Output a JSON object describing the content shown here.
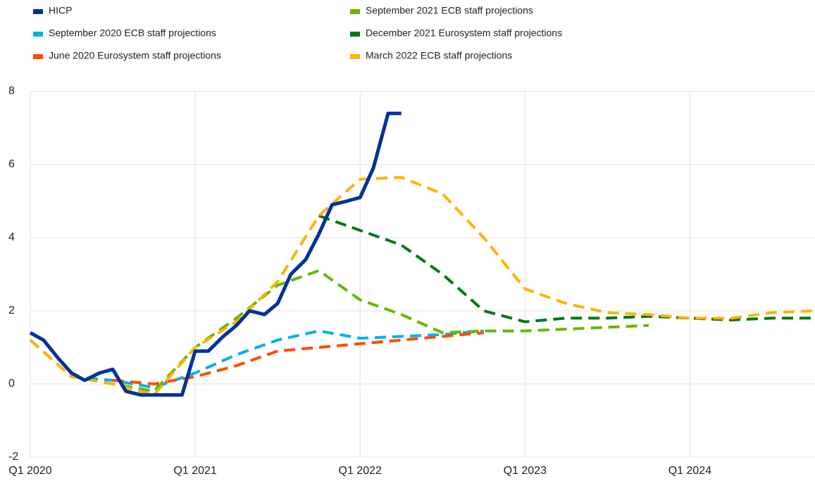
{
  "chart_data": {
    "type": "line",
    "series": [
      {
        "name": "HICP",
        "color": "#003299",
        "dashed": false,
        "x": [
          2020.0,
          2020.08,
          2020.17,
          2020.25,
          2020.33,
          2020.42,
          2020.5,
          2020.58,
          2020.67,
          2020.75,
          2020.83,
          2020.92,
          2021.0,
          2021.08,
          2021.17,
          2021.25,
          2021.33,
          2021.42,
          2021.5,
          2021.58,
          2021.67,
          2021.75,
          2021.83,
          2021.92,
          2022.0,
          2022.08,
          2022.17,
          2022.25
        ],
        "values": [
          1.4,
          1.2,
          0.7,
          0.3,
          0.1,
          0.3,
          0.4,
          -0.2,
          -0.3,
          -0.3,
          -0.3,
          -0.3,
          0.9,
          0.9,
          1.3,
          1.6,
          2.0,
          1.9,
          2.2,
          3.0,
          3.4,
          4.1,
          4.9,
          5.0,
          5.1,
          5.9,
          7.4,
          7.4
        ]
      },
      {
        "name": "September 2020 ECB staff projections",
        "color": "#00b1ea",
        "dashed": true,
        "x": [
          2020.0,
          2020.25,
          2020.5,
          2020.75,
          2021.0,
          2021.25,
          2021.5,
          2021.75,
          2022.0,
          2022.25,
          2022.5,
          2022.75
        ],
        "values": [
          1.2,
          0.2,
          0.1,
          -0.1,
          0.3,
          0.8,
          1.2,
          1.45,
          1.25,
          1.3,
          1.35,
          1.45
        ]
      },
      {
        "name": "June 2020 Eurosystem staff projections",
        "color": "#ff4b00",
        "dashed": true,
        "x": [
          2020.5,
          2020.75,
          2021.0,
          2021.25,
          2021.5,
          2021.75,
          2022.0,
          2022.25,
          2022.5,
          2022.75
        ],
        "values": [
          0.1,
          0.0,
          0.2,
          0.5,
          0.9,
          1.0,
          1.1,
          1.2,
          1.3,
          1.4
        ]
      },
      {
        "name": "September 2021 ECB staff projections",
        "color": "#65b800",
        "dashed": true,
        "x": [
          2020.0,
          2020.25,
          2020.5,
          2020.75,
          2021.0,
          2021.25,
          2021.5,
          2021.75,
          2022.0,
          2022.25,
          2022.5,
          2022.75,
          2023.0,
          2023.25,
          2023.5,
          2023.75
        ],
        "values": [
          1.2,
          0.2,
          0.0,
          -0.2,
          1.0,
          1.8,
          2.7,
          3.1,
          2.3,
          1.9,
          1.4,
          1.45,
          1.45,
          1.5,
          1.55,
          1.6
        ]
      },
      {
        "name": "December 2021 Eurosystem staff projections",
        "color": "#007816",
        "dashed": true,
        "x": [
          2021.75,
          2022.0,
          2022.25,
          2022.5,
          2022.75,
          2023.0,
          2023.25,
          2023.5,
          2023.75,
          2024.0,
          2024.25,
          2024.5,
          2024.75
        ],
        "values": [
          4.6,
          4.2,
          3.8,
          3.0,
          2.0,
          1.7,
          1.8,
          1.8,
          1.85,
          1.8,
          1.75,
          1.8,
          1.8
        ]
      },
      {
        "name": "March 2022 ECB staff projections",
        "color": "#ffb400",
        "dashed": true,
        "x": [
          2020.0,
          2020.25,
          2020.5,
          2020.75,
          2021.0,
          2021.25,
          2021.5,
          2021.75,
          2022.0,
          2022.25,
          2022.5,
          2022.75,
          2023.0,
          2023.25,
          2023.5,
          2023.75,
          2024.0,
          2024.25,
          2024.5,
          2024.75
        ],
        "values": [
          1.2,
          0.2,
          0.0,
          -0.3,
          1.0,
          1.7,
          2.8,
          4.6,
          5.6,
          5.65,
          5.2,
          4.0,
          2.6,
          2.2,
          1.95,
          1.9,
          1.8,
          1.8,
          1.95,
          2.0
        ]
      }
    ],
    "xlim": [
      2020,
      2024.75
    ],
    "xticks": [
      {
        "value": 2020,
        "label": "Q1 2020"
      },
      {
        "value": 2021,
        "label": "Q1 2021"
      },
      {
        "value": 2022,
        "label": "Q1 2022"
      },
      {
        "value": 2023,
        "label": "Q1 2023"
      },
      {
        "value": 2024,
        "label": "Q1 2024"
      }
    ],
    "ylim": [
      -2,
      8
    ],
    "yticks": [
      -2,
      0,
      2,
      4,
      6,
      8
    ],
    "grid": true
  }
}
